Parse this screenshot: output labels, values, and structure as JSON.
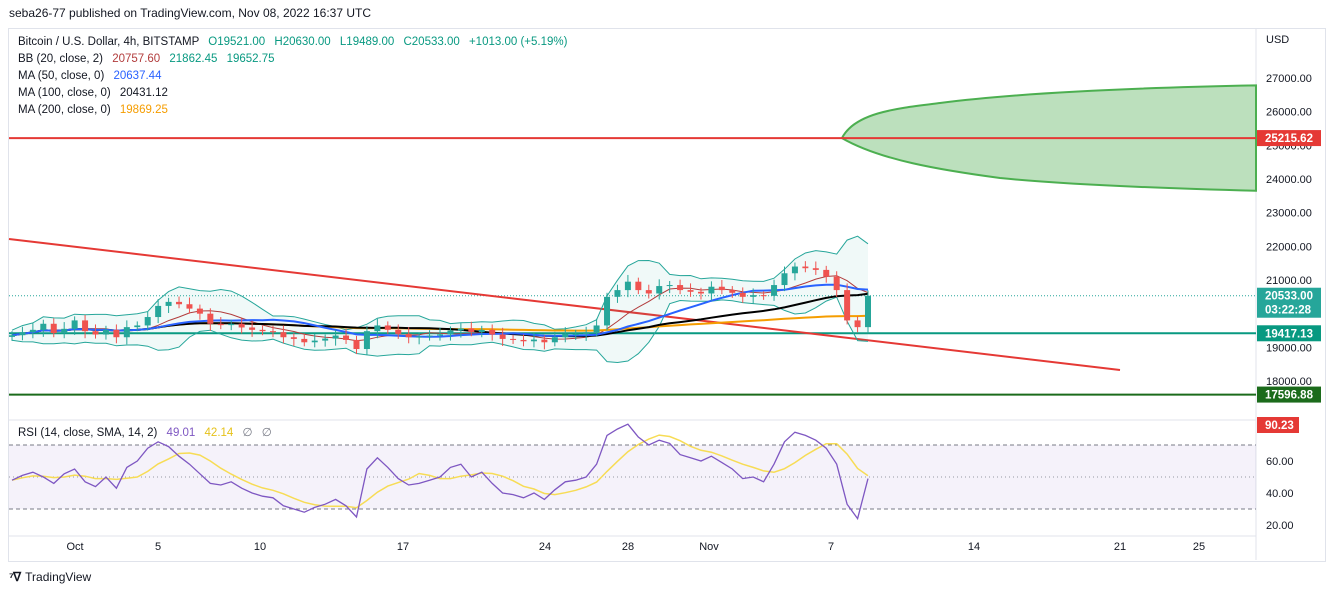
{
  "header": {
    "published_text": "seba26-77 published on TradingView.com, Nov 08, 2022 16:37 UTC"
  },
  "footer": {
    "brand": "TradingView"
  },
  "colors": {
    "candle_up": "#26a69a",
    "candle_down": "#ef5350",
    "resistance": "#e53935",
    "support": "#089981",
    "deep_support": "#1b6b1b",
    "projection": "#4caf50",
    "ma50": "#2962ff",
    "ma100": "#000000",
    "ma200": "#f59d00",
    "rsi": "#7e57c2",
    "rsi_sma": "#f7dc55"
  },
  "legend": {
    "title": "Bitcoin / U.S. Dollar, 4h, BITSTAMP",
    "o": "O19521.00",
    "h": "H20630.00",
    "l": "L19489.00",
    "c": "C20533.00",
    "chg": "+1013.00 (+5.19%)",
    "bb_label": "BB (20, close, 2)",
    "bb_v1": "20757.60",
    "bb_v2": "21862.45",
    "bb_v3": "19652.75",
    "ma50_label": "MA (50, close, 0)",
    "ma50_v": "20637.44",
    "ma100_label": "MA (100, close, 0)",
    "ma100_v": "20431.12",
    "ma200_label": "MA (200, close, 0)",
    "ma200_v": "19869.25"
  },
  "rsi_legend": {
    "label": "RSI (14, close, SMA, 14, 2)",
    "v1": "49.01",
    "v2": "42.14",
    "v3": "∅",
    "v4": "∅"
  },
  "chart_data": {
    "type": "line",
    "symbol": "BTCUSD",
    "timeframe": "4h",
    "currency_label": "USD",
    "x_ticks": [
      "Oct",
      "5",
      "10",
      "17",
      "24",
      "28",
      "Nov",
      "7",
      "14",
      "21",
      "25"
    ],
    "price_ticks": [
      "27000.00",
      "26000.00",
      "25000.00",
      "24000.00",
      "23000.00",
      "22000.00",
      "21000.00",
      "19000.00",
      "18000.00"
    ],
    "rsi_ticks": [
      "60.00",
      "40.00",
      "20.00"
    ],
    "ylim": [
      17400,
      28000
    ],
    "rsi_ylim": [
      14,
      88
    ],
    "price_labels": [
      {
        "text": "25215.62",
        "kind": "resistance"
      },
      {
        "text": "20533.00",
        "kind": "last"
      },
      {
        "text": "03:22:28",
        "kind": "countdown"
      },
      {
        "text": "19417.13",
        "kind": "support"
      },
      {
        "text": "17596.88",
        "kind": "deep_support"
      }
    ],
    "rsi_label": "90.23",
    "horizontal_levels": [
      {
        "value": 25215.62,
        "kind": "resistance"
      },
      {
        "value": 19417.13,
        "kind": "support"
      },
      {
        "value": 17596.88,
        "kind": "deep_support"
      }
    ],
    "last_price": 20533,
    "price_series": [
      19360,
      19450,
      19520,
      19700,
      19420,
      19550,
      19800,
      19480,
      19380,
      19520,
      19300,
      19600,
      19650,
      19900,
      20230,
      20350,
      20280,
      20150,
      20000,
      19700,
      19660,
      19700,
      19590,
      19520,
      19480,
      19450,
      19300,
      19250,
      19150,
      19200,
      19260,
      19350,
      19220,
      18950,
      19480,
      19650,
      19520,
      19400,
      19300,
      19320,
      19350,
      19380,
      19500,
      19560,
      19450,
      19520,
      19380,
      19250,
      19220,
      19180,
      19230,
      19150,
      19300,
      19400,
      19400,
      19450,
      19650,
      20500,
      20700,
      20950,
      20700,
      20600,
      20820,
      20850,
      20700,
      20650,
      20600,
      20800,
      20700,
      20620,
      20500,
      20550,
      20530,
      20850,
      21200,
      21400,
      21350,
      21300,
      21100,
      20700,
      19800,
      19600,
      20533
    ],
    "rsi_series": [
      48,
      51,
      53,
      50,
      46,
      52,
      55,
      47,
      44,
      50,
      43,
      56,
      60,
      68,
      72,
      69,
      63,
      58,
      52,
      46,
      45,
      47,
      43,
      40,
      38,
      37,
      32,
      30,
      28,
      31,
      33,
      36,
      32,
      25,
      55,
      62,
      56,
      49,
      45,
      46,
      48,
      50,
      56,
      58,
      50,
      53,
      46,
      40,
      39,
      37,
      40,
      36,
      42,
      47,
      48,
      50,
      58,
      76,
      80,
      83,
      75,
      70,
      73,
      71,
      64,
      62,
      60,
      63,
      59,
      55,
      49,
      50,
      47,
      58,
      72,
      78,
      76,
      73,
      68,
      58,
      33,
      24,
      49
    ],
    "rsi_bands": {
      "upper": 70,
      "middle": 50,
      "lower": 30
    },
    "projection_range": [
      23650,
      26780
    ]
  }
}
